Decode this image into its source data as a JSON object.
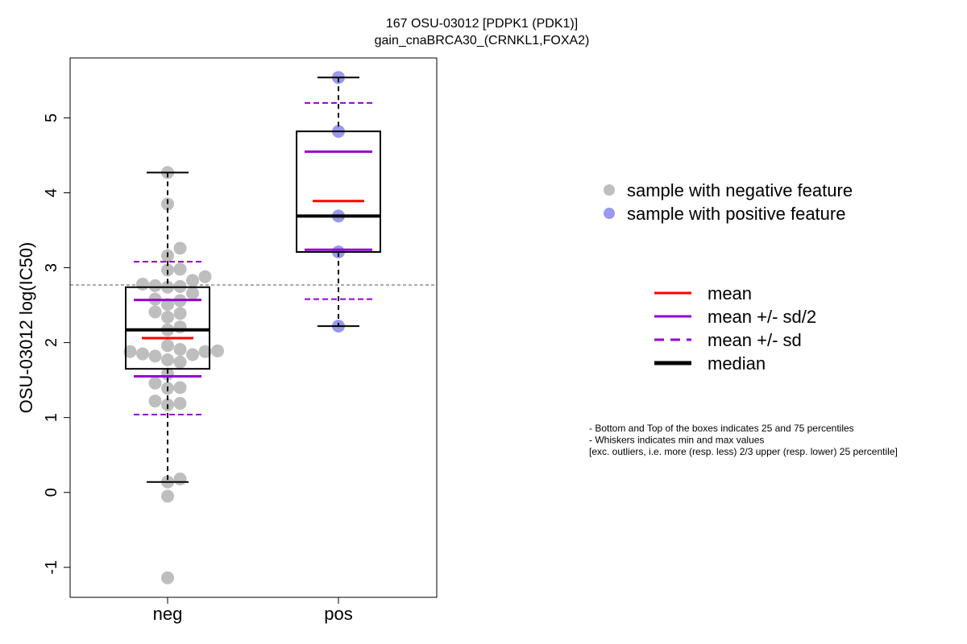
{
  "chart_data": {
    "type": "box",
    "title": "167 OSU-03012 [PDPK1 (PDK1)]",
    "subtitle": "gain_cnaBRCA30_(CRNKL1,FOXA2)",
    "ylabel": "OSU-03012 log(IC50)",
    "xlabel": "",
    "categories": [
      "neg",
      "pos"
    ],
    "ylim": [
      -1.4,
      5.8
    ],
    "yticks": [
      -1,
      0,
      1,
      2,
      3,
      4,
      5
    ],
    "reference_line": 2.77,
    "colors": {
      "neg_points": "#bebebe",
      "pos_points": "#9999ee",
      "mean": "#ff0000",
      "sd": "#9400d3",
      "median": "#000000",
      "reference": "#555555"
    },
    "groups": [
      {
        "name": "neg",
        "stats": {
          "min": 0.14,
          "q1": 1.65,
          "median": 2.17,
          "q3": 2.74,
          "max": 4.27,
          "mean": 2.06,
          "sd_half_low": 1.55,
          "sd_half_high": 2.57,
          "sd_low": 1.04,
          "sd_high": 3.08
        },
        "points": [
          4.27,
          3.85,
          3.26,
          3.16,
          2.98,
          2.97,
          2.88,
          2.83,
          2.78,
          2.76,
          2.75,
          2.74,
          2.66,
          2.58,
          2.56,
          2.51,
          2.41,
          2.39,
          2.34,
          2.21,
          2.17,
          1.96,
          1.91,
          1.89,
          1.88,
          1.88,
          1.85,
          1.84,
          1.82,
          1.77,
          1.74,
          1.58,
          1.46,
          1.4,
          1.39,
          1.22,
          1.19,
          1.17,
          0.18,
          0.14,
          -0.05,
          -1.14
        ]
      },
      {
        "name": "pos",
        "stats": {
          "min": 2.22,
          "q1": 3.21,
          "median": 3.69,
          "q3": 4.82,
          "max": 5.54,
          "mean": 3.89,
          "sd_half_low": 3.24,
          "sd_half_high": 4.55,
          "sd_low": 2.58,
          "sd_high": 5.2
        },
        "points": [
          5.54,
          4.82,
          3.69,
          3.21,
          2.22
        ]
      }
    ],
    "legend_points": [
      {
        "label": "sample with negative feature",
        "color": "#bebebe"
      },
      {
        "label": "sample with positive feature",
        "color": "#9999ee"
      }
    ],
    "legend_lines": [
      {
        "label": "mean",
        "color": "#ff0000",
        "style": "solid",
        "width": 3
      },
      {
        "label": "mean +/- sd/2",
        "color": "#9400d3",
        "style": "solid",
        "width": 3
      },
      {
        "label": "mean +/- sd",
        "color": "#9400d3",
        "style": "dashed",
        "width": 3
      },
      {
        "label": "median",
        "color": "#000000",
        "style": "solid",
        "width": 5
      }
    ],
    "notes": [
      "- Bottom and Top of the boxes indicates 25 and 75 percentiles",
      "- Whiskers indicates min and max values",
      "[exc. outliers, i.e. more (resp. less) 2/3 upper (resp. lower) 25 percentile]"
    ]
  }
}
